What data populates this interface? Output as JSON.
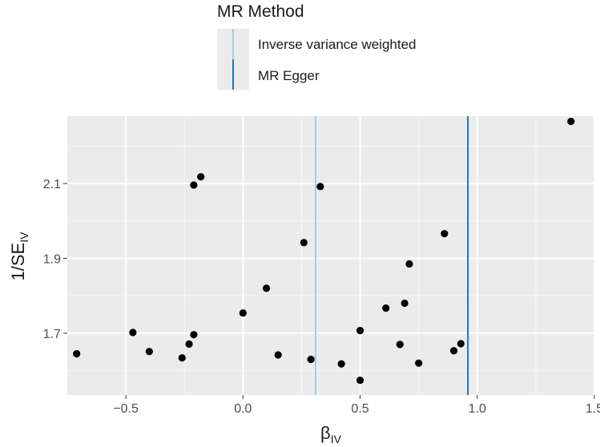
{
  "chart_data": {
    "type": "scatter",
    "xlabel": "β",
    "xlabel_sub": "IV",
    "ylabel": "1/SE",
    "ylabel_sub": "IV",
    "xlim": [
      -0.75,
      1.5
    ],
    "ylim": [
      1.535,
      2.28
    ],
    "xticks": [
      -0.5,
      0.0,
      0.5,
      1.0,
      1.5
    ],
    "xtick_labels": [
      "−0.5",
      "0.0",
      "0.5",
      "1.0",
      "1.5"
    ],
    "yticks": [
      1.7,
      1.9,
      2.1
    ],
    "ytick_labels": [
      "1.7",
      "1.9",
      "2.1"
    ],
    "grid": true,
    "legend": {
      "title": "MR Method",
      "placement": "top",
      "entries": [
        {
          "label": "Inverse variance weighted",
          "color": "#a6cee3"
        },
        {
          "label": "MR Egger",
          "color": "#1f78b4"
        }
      ]
    },
    "vlines": [
      {
        "name": "Inverse variance weighted",
        "x": 0.31,
        "color": "#a6cee3"
      },
      {
        "name": "MR Egger",
        "x": 0.96,
        "color": "#1f78b4"
      }
    ],
    "points": [
      {
        "x": -0.71,
        "y": 1.645
      },
      {
        "x": -0.47,
        "y": 1.702
      },
      {
        "x": -0.4,
        "y": 1.651
      },
      {
        "x": -0.26,
        "y": 1.634
      },
      {
        "x": -0.23,
        "y": 1.671
      },
      {
        "x": -0.21,
        "y": 1.696
      },
      {
        "x": -0.21,
        "y": 2.096
      },
      {
        "x": -0.18,
        "y": 2.118
      },
      {
        "x": 0.0,
        "y": 1.754
      },
      {
        "x": 0.1,
        "y": 1.82
      },
      {
        "x": 0.15,
        "y": 1.642
      },
      {
        "x": 0.26,
        "y": 1.942
      },
      {
        "x": 0.29,
        "y": 1.63
      },
      {
        "x": 0.33,
        "y": 2.092
      },
      {
        "x": 0.42,
        "y": 1.618
      },
      {
        "x": 0.5,
        "y": 1.707
      },
      {
        "x": 0.5,
        "y": 1.574
      },
      {
        "x": 0.61,
        "y": 1.767
      },
      {
        "x": 0.67,
        "y": 1.67
      },
      {
        "x": 0.69,
        "y": 1.78
      },
      {
        "x": 0.71,
        "y": 1.885
      },
      {
        "x": 0.75,
        "y": 1.62
      },
      {
        "x": 0.86,
        "y": 1.966
      },
      {
        "x": 0.9,
        "y": 1.653
      },
      {
        "x": 0.93,
        "y": 1.672
      },
      {
        "x": 1.4,
        "y": 2.266
      }
    ]
  }
}
